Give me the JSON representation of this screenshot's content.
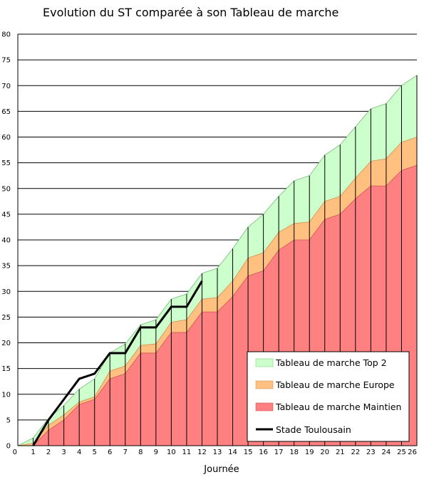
{
  "chart_data": {
    "type": "area",
    "title": "Evolution du ST comparée à son Tableau de marche",
    "xlabel": "Journée",
    "ylabel": "",
    "x": [
      0,
      1,
      2,
      3,
      4,
      5,
      6,
      7,
      8,
      9,
      10,
      11,
      12,
      13,
      14,
      15,
      16,
      17,
      18,
      19,
      20,
      21,
      22,
      23,
      24,
      25,
      26
    ],
    "xlim": [
      0,
      26
    ],
    "ylim": [
      0,
      80
    ],
    "yticks": [
      0,
      5,
      10,
      15,
      20,
      25,
      30,
      35,
      40,
      45,
      50,
      55,
      60,
      65,
      70,
      75,
      80
    ],
    "grid": "horizontal",
    "legend_position": "bottom-right",
    "series": [
      {
        "name": "Tableau de marche Top 2",
        "kind": "area",
        "color": "#ccffcc",
        "values": [
          0,
          1.5,
          5.3,
          7.8,
          11,
          13,
          18,
          19.8,
          23.5,
          24.5,
          28.5,
          29.5,
          33.5,
          34.5,
          38.3,
          42.5,
          45,
          48.5,
          51.5,
          52.5,
          56.5,
          58.5,
          62,
          65.5,
          66.5,
          70,
          72
        ]
      },
      {
        "name": "Tableau de marche Europe",
        "kind": "area",
        "color": "#ffc080",
        "values": [
          0,
          0.5,
          4,
          6,
          8.5,
          9.5,
          14.5,
          15.5,
          19.5,
          19.8,
          24,
          24.5,
          28.5,
          28.8,
          32,
          36.5,
          37.5,
          41.5,
          43.2,
          43.5,
          47.5,
          48.5,
          52,
          55.3,
          55.8,
          59,
          60
        ]
      },
      {
        "name": "Tableau de marche Maintien",
        "kind": "area",
        "color": "#ff8080",
        "values": [
          0,
          0,
          3,
          5,
          8,
          9,
          13,
          14,
          18,
          18,
          22,
          22,
          26,
          26,
          29,
          33,
          34,
          38,
          40,
          40,
          44,
          45,
          48,
          50.5,
          50.5,
          53.5,
          54.5
        ]
      },
      {
        "name": "Stade Toulousain",
        "kind": "line",
        "color": "#000000",
        "x": [
          1,
          2,
          3,
          4,
          5,
          6,
          7,
          8,
          9,
          10,
          11,
          12
        ],
        "values": [
          0,
          5,
          9,
          13,
          14,
          18,
          18,
          23,
          23,
          27,
          27,
          32
        ]
      }
    ]
  }
}
